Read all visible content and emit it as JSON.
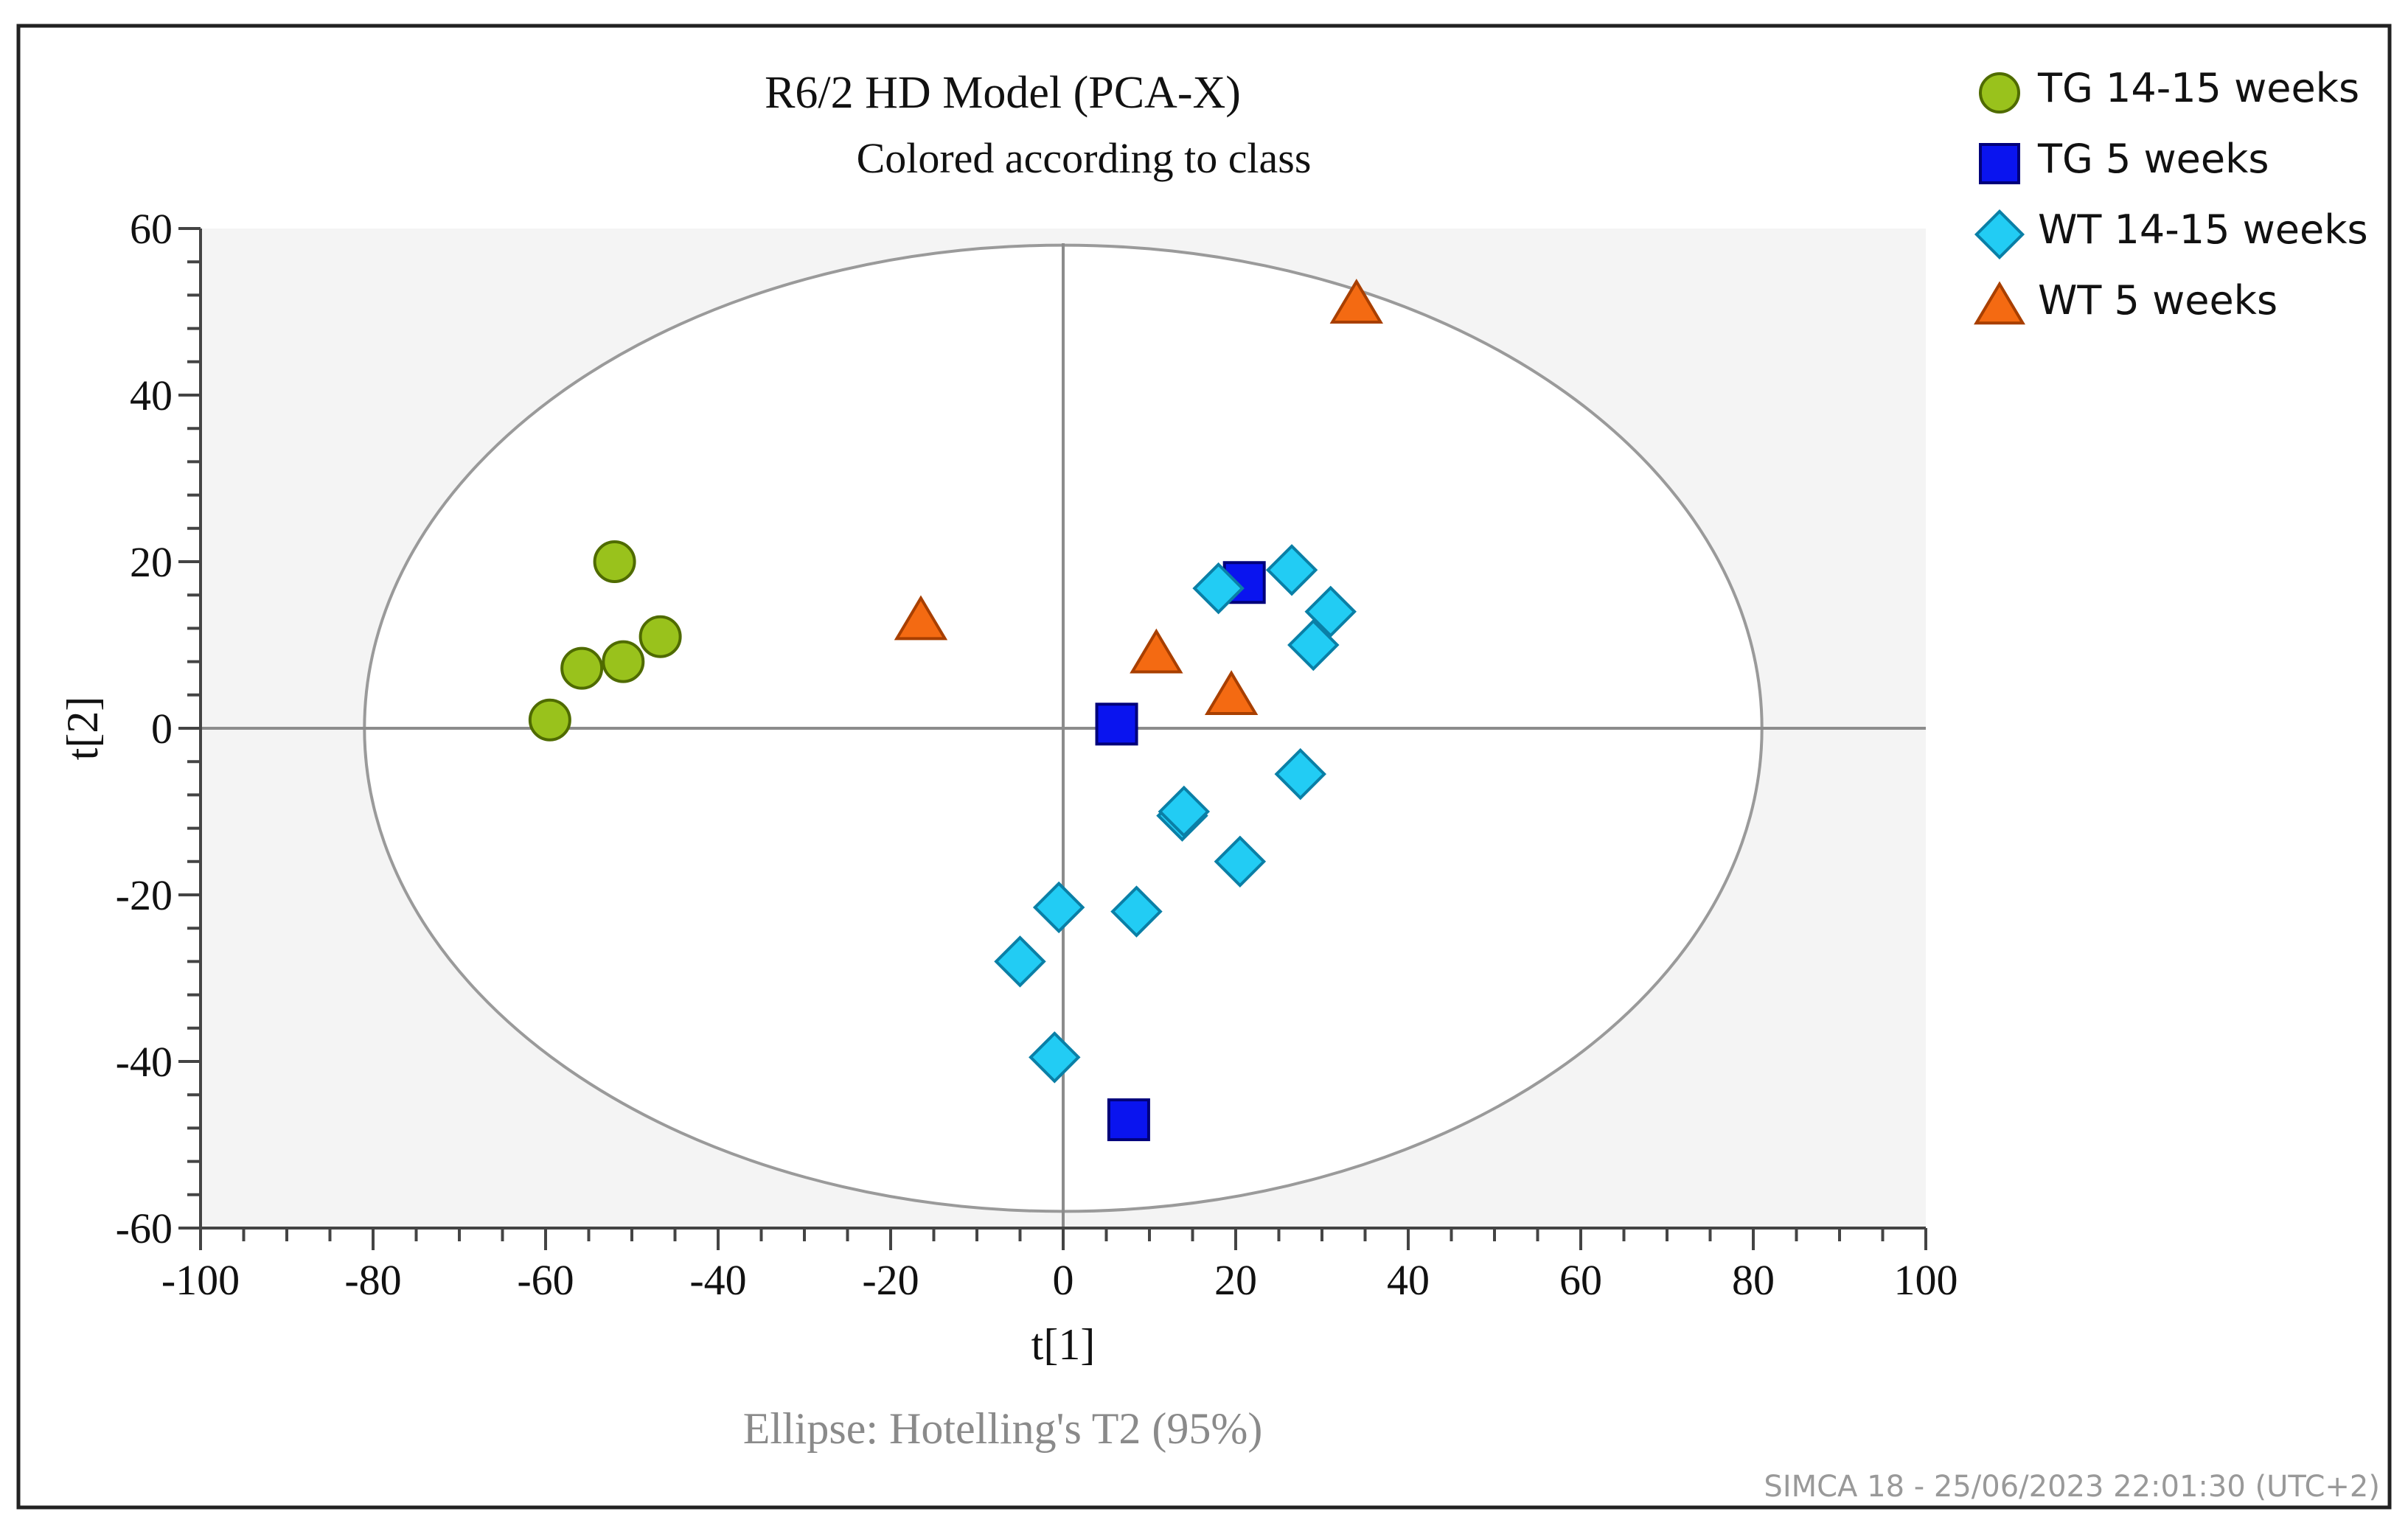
{
  "chart_data": {
    "type": "scatter",
    "title": "R6/2 HD Model (PCA-X)",
    "subtitle": "Colored according to class",
    "xlabel": "t[1]",
    "ylabel": "t[2]",
    "xlim": [
      -100,
      100
    ],
    "ylim": [
      -60,
      60
    ],
    "x_ticks": [
      -100,
      -80,
      -60,
      -40,
      -20,
      0,
      20,
      40,
      60,
      80,
      100
    ],
    "y_ticks": [
      -60,
      -40,
      -20,
      0,
      20,
      40,
      60
    ],
    "ellipse": {
      "label": "Ellipse: Hotelling's T2 (95%)",
      "center": [
        0,
        0
      ],
      "semi_axis_x": 81,
      "semi_axis_y": 58
    },
    "footer": "SIMCA 18 - 25/06/2023 22:01:30 (UTC+2)",
    "legend_position": "top-right",
    "series": [
      {
        "name": "TG 14-15 weeks",
        "marker": "circle",
        "color": "#99c21c",
        "stroke": "#4f6b00",
        "points": [
          [
            -52,
            20
          ],
          [
            -46.7,
            11
          ],
          [
            -51,
            8
          ],
          [
            -55.8,
            7.2
          ],
          [
            -59.5,
            1
          ]
        ]
      },
      {
        "name": "TG 5 weeks",
        "marker": "square",
        "color": "#0a14ef",
        "stroke": "#00007a",
        "points": [
          [
            21,
            17.5
          ],
          [
            6.2,
            0.5
          ],
          [
            7.6,
            -47
          ]
        ]
      },
      {
        "name": "WT 14-15 weeks",
        "marker": "diamond",
        "color": "#22ccf4",
        "stroke": "#0a7fa6",
        "points": [
          [
            26.5,
            19
          ],
          [
            18,
            16.8
          ],
          [
            31,
            14
          ],
          [
            29,
            10
          ],
          [
            27.5,
            -5.5
          ],
          [
            13.8,
            -10.5
          ],
          [
            14,
            -10
          ],
          [
            20.5,
            -16
          ],
          [
            -0.5,
            -21.5
          ],
          [
            8.5,
            -22
          ],
          [
            -5,
            -28
          ],
          [
            -1,
            -39.5
          ]
        ]
      },
      {
        "name": "WT 5 weeks",
        "marker": "triangle",
        "color": "#f46a12",
        "stroke": "#a83f00",
        "points": [
          [
            34,
            51
          ],
          [
            -16.5,
            13
          ],
          [
            10.8,
            9
          ],
          [
            19.5,
            4
          ]
        ]
      }
    ]
  }
}
